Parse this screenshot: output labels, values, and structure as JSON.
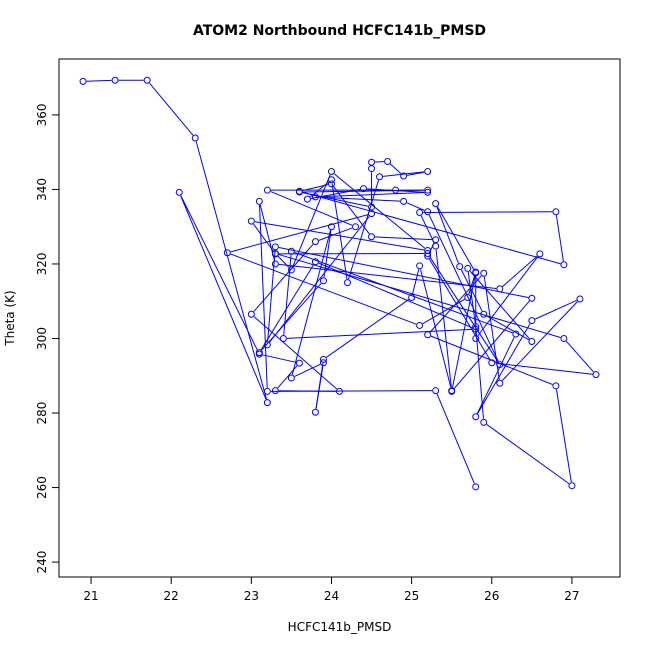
{
  "chart_data": {
    "type": "line",
    "title": "ATOM2 Northbound HCFC141b_PMSD",
    "xlabel": "HCFC141b_PMSD",
    "ylabel": "Theta (K)",
    "xlim": [
      20.6,
      27.6
    ],
    "ylim": [
      236,
      375
    ],
    "xticks": [
      21,
      22,
      23,
      24,
      25,
      26,
      27
    ],
    "yticks": [
      240,
      260,
      280,
      300,
      320,
      340,
      360
    ],
    "grid": false,
    "line_color": "#0000ff",
    "marker": "open-circle",
    "series": [
      {
        "points": [
          [
            20.9,
            369
          ],
          [
            21.3,
            369.3
          ],
          [
            21.7,
            369.3
          ],
          [
            22.3,
            353.8
          ],
          [
            23.2,
            282.8
          ],
          [
            22.1,
            339.2
          ],
          [
            23.1,
            295.8
          ],
          [
            23.6,
            293.4
          ],
          [
            23.3,
            286
          ],
          [
            24.1,
            285.8
          ],
          [
            23,
            306.5
          ],
          [
            23.8,
            326
          ],
          [
            24.3,
            330
          ],
          [
            23.2,
            339.8
          ],
          [
            24.8,
            339.8
          ],
          [
            25.2,
            339.8
          ],
          [
            23.6,
            339.3
          ],
          [
            24.5,
            335.3
          ],
          [
            24.5,
            345.6
          ],
          [
            24.5,
            347.3
          ],
          [
            24.7,
            347.5
          ],
          [
            24.9,
            343.6
          ],
          [
            25.2,
            344.8
          ],
          [
            24.6,
            343.4
          ],
          [
            24.2,
            315
          ],
          [
            24,
            342.6
          ],
          [
            23.7,
            337.4
          ],
          [
            24.4,
            340.2
          ],
          [
            25.2,
            339.2
          ],
          [
            23.8,
            338
          ],
          [
            24.9,
            336.8
          ],
          [
            25.2,
            334
          ],
          [
            26.1,
            293
          ],
          [
            25.2,
            322.8
          ],
          [
            23.3,
            322.7
          ],
          [
            23,
            331.5
          ],
          [
            25.2,
            323.6
          ],
          [
            24,
            344.8
          ],
          [
            23.5,
            318.4
          ],
          [
            23.3,
            322.8
          ],
          [
            26.9,
            300
          ],
          [
            27.3,
            290.3
          ],
          [
            26,
            293.5
          ],
          [
            25.2,
            322.1
          ],
          [
            25.3,
            326.5
          ],
          [
            24.5,
            327.3
          ],
          [
            24,
            341.5
          ],
          [
            23.6,
            339.5
          ],
          [
            26.9,
            319.8
          ],
          [
            26.8,
            334
          ],
          [
            25.1,
            333.8
          ],
          [
            25.3,
            324.8
          ],
          [
            25.5,
            286
          ],
          [
            25.1,
            319.5
          ],
          [
            25,
            311
          ],
          [
            23.9,
            294.4
          ],
          [
            23.8,
            280.2
          ],
          [
            23.9,
            293.5
          ],
          [
            23.5,
            289.4
          ],
          [
            24,
            330
          ],
          [
            23.9,
            315.5
          ],
          [
            23.1,
            296.2
          ],
          [
            23.8,
            320.6
          ],
          [
            25.8,
            302.5
          ],
          [
            23.4,
            300
          ],
          [
            23.5,
            323.4
          ],
          [
            26.3,
            301.2
          ],
          [
            25.8,
            279
          ],
          [
            26.5,
            304.8
          ],
          [
            27.1,
            310.6
          ],
          [
            26.1,
            288
          ],
          [
            25.9,
            317.5
          ],
          [
            25.2,
            301
          ],
          [
            26.8,
            287.3
          ],
          [
            27,
            260.5
          ],
          [
            25.9,
            277.5
          ],
          [
            25.8,
            303.2
          ],
          [
            25.7,
            318.8
          ],
          [
            26.5,
            299.2
          ],
          [
            25.9,
            306.5
          ],
          [
            25.6,
            319.3
          ],
          [
            25.3,
            336.2
          ],
          [
            25.8,
            317.6
          ],
          [
            25.5,
            285.8
          ],
          [
            26.5,
            310.8
          ],
          [
            23.3,
            324.6
          ],
          [
            23.2,
            298.3
          ],
          [
            24.5,
            333.5
          ],
          [
            22.7,
            323
          ],
          [
            25.1,
            303.5
          ],
          [
            25.7,
            311
          ],
          [
            25.8,
            317.8
          ],
          [
            25.8,
            300
          ],
          [
            26.6,
            322.7
          ],
          [
            26.1,
            313.3
          ],
          [
            23.3,
            320
          ],
          [
            23.1,
            336.8
          ],
          [
            23.2,
            285.8
          ],
          [
            25.3,
            286
          ],
          [
            25.8,
            260.2
          ]
        ]
      }
    ]
  }
}
